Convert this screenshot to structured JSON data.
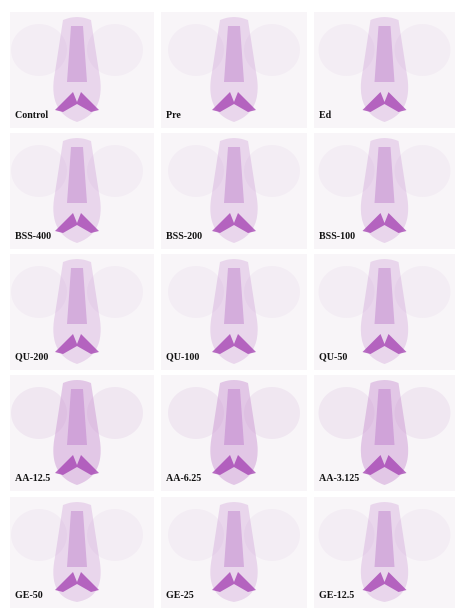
{
  "panels": [
    {
      "label": "Control"
    },
    {
      "label": "Pre"
    },
    {
      "label": "Ed"
    },
    {
      "label": "BSS-400"
    },
    {
      "label": "BSS-200"
    },
    {
      "label": "BSS-100"
    },
    {
      "label": "QU-200"
    },
    {
      "label": "QU-100"
    },
    {
      "label": "QU-50"
    },
    {
      "label": "AA-12.5"
    },
    {
      "label": "AA-6.25"
    },
    {
      "label": "AA-3.125"
    },
    {
      "label": "GE-50"
    },
    {
      "label": "GE-25"
    },
    {
      "label": "GE-12.5"
    }
  ]
}
